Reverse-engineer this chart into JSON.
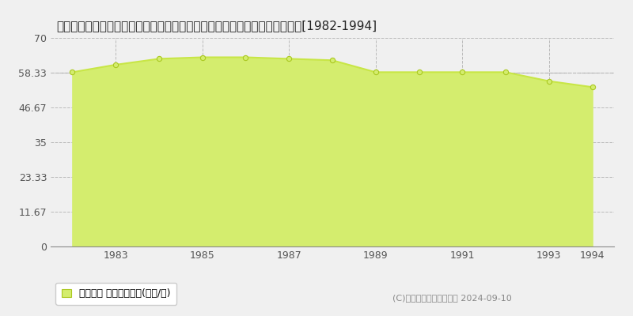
{
  "title": "大分県津久見市大字津久見浦字角尾崎３８２１番３外　地価公示　地価推移[1982-1994]",
  "years": [
    1982,
    1983,
    1984,
    1985,
    1986,
    1987,
    1988,
    1989,
    1990,
    1991,
    1992,
    1993,
    1994
  ],
  "values": [
    58.5,
    61.0,
    63.0,
    63.5,
    63.5,
    63.0,
    62.5,
    58.5,
    58.5,
    58.5,
    58.5,
    55.5,
    53.5
  ],
  "line_color": "#c8e646",
  "fill_color": "#d4ed6e",
  "fill_alpha": 1.0,
  "marker_color": "#d4ed6e",
  "marker_edge_color": "#ffffff",
  "bg_color": "#f0f0f0",
  "plot_bg_color": "#f0f0f0",
  "grid_color": "#bbbbbb",
  "yticks": [
    0,
    11.67,
    23.33,
    35,
    46.67,
    58.33,
    70
  ],
  "ytick_labels": [
    "0",
    "11.67",
    "23.33",
    "35",
    "46.67",
    "58.33",
    "70"
  ],
  "ylim": [
    0,
    70
  ],
  "legend_label": "地価公示 　平均坪単価(万円/坪)",
  "copyright_text": "(C)土地価格ドットコム　 2024-09-10",
  "title_fontsize": 11,
  "tick_fontsize": 9,
  "legend_fontsize": 9,
  "copyright_fontsize": 8,
  "dashed_line_y": 58.33
}
